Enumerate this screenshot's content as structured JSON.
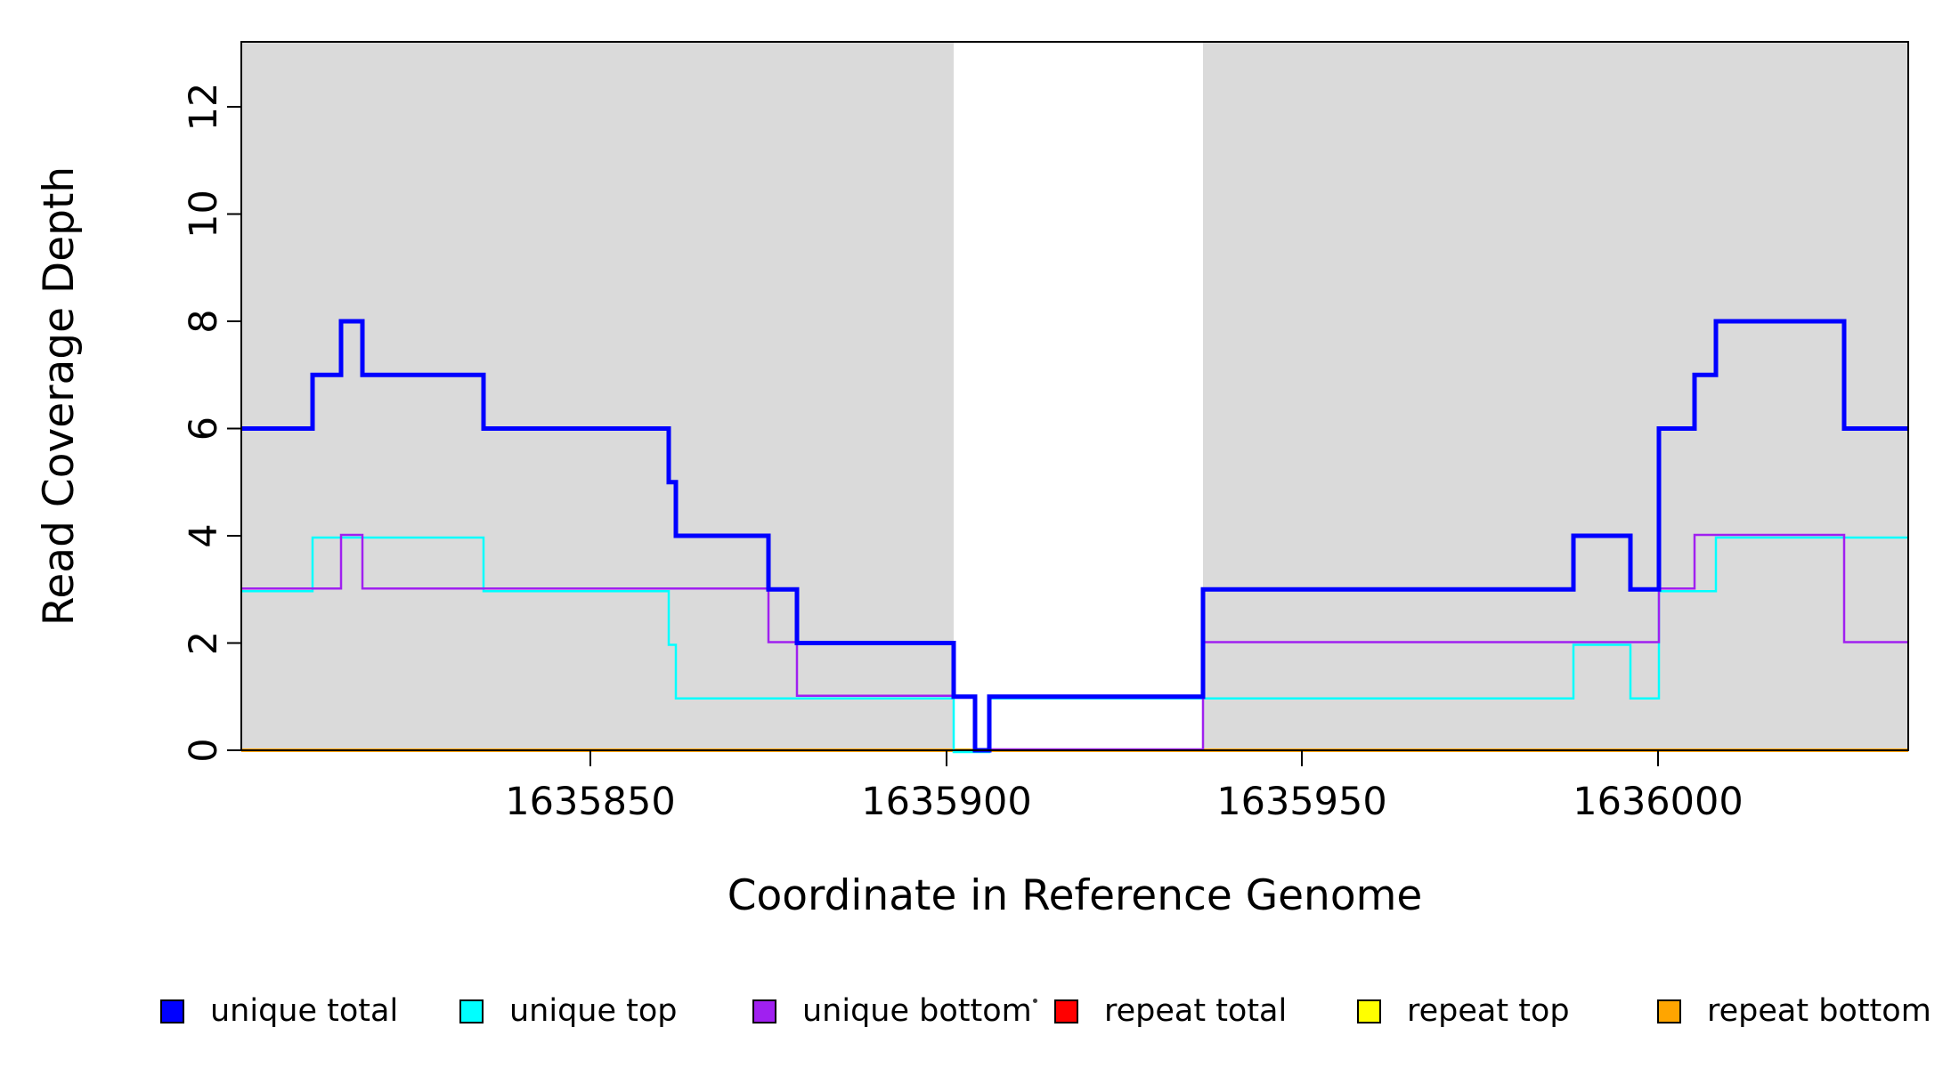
{
  "chart_data": {
    "type": "line",
    "subtype": "step-coverage-plot",
    "title": "",
    "xlabel": "Coordinate in Reference Genome",
    "ylabel": "Read Coverage Depth",
    "xlim": [
      1635801,
      1636035
    ],
    "ylim": [
      0,
      13.2
    ],
    "grid": false,
    "x_ticks": [
      1635850,
      1635900,
      1635950,
      1636000
    ],
    "x_tick_labels": [
      "1635850",
      "1635900",
      "1635950",
      "1636000"
    ],
    "y_ticks": [
      0,
      2,
      4,
      6,
      8,
      10,
      12
    ],
    "y_tick_labels": [
      "0",
      "2",
      "4",
      "6",
      "8",
      "10",
      "12"
    ],
    "plot_bg_color": "#ffffff",
    "band_color": "#DADADA",
    "background_bands": [
      {
        "from": 1635801,
        "to": 1635901
      },
      {
        "from": 1635936,
        "to": 1636035
      }
    ],
    "series": [
      {
        "name": "repeat total",
        "color": "#FF0000",
        "width": 3,
        "segments": [
          [
            1635801,
            1636035,
            0
          ]
        ]
      },
      {
        "name": "repeat top",
        "color": "#FFFF00",
        "width": 3,
        "segments": [
          [
            1635801,
            1636035,
            0
          ]
        ]
      },
      {
        "name": "repeat bottom",
        "color": "#FFA500",
        "width": 4,
        "segments": [
          [
            1635801,
            1636035,
            0
          ]
        ]
      },
      {
        "name": "unique top",
        "color": "#00FFFF",
        "width": 2.5,
        "segments": [
          [
            1635801,
            1635811,
            3
          ],
          [
            1635811,
            1635835,
            4
          ],
          [
            1635835,
            1635861,
            3
          ],
          [
            1635861,
            1635862,
            2
          ],
          [
            1635862,
            1635901,
            1
          ],
          [
            1635901,
            1635906,
            0
          ],
          [
            1635906,
            1635988,
            1
          ],
          [
            1635988,
            1635996,
            2
          ],
          [
            1635996,
            1636000,
            1
          ],
          [
            1636000,
            1636008,
            3
          ],
          [
            1636008,
            1636035,
            4
          ]
        ]
      },
      {
        "name": "unique bottom",
        "color": "#A020F0",
        "width": 2.5,
        "segments": [
          [
            1635801,
            1635815,
            3
          ],
          [
            1635815,
            1635818,
            4
          ],
          [
            1635818,
            1635875,
            3
          ],
          [
            1635875,
            1635879,
            2
          ],
          [
            1635879,
            1635904,
            1
          ],
          [
            1635904,
            1635936,
            0
          ],
          [
            1635936,
            1636000,
            2
          ],
          [
            1636000,
            1636005,
            3
          ],
          [
            1636005,
            1636026,
            4
          ],
          [
            1636026,
            1636035,
            2
          ]
        ]
      },
      {
        "name": "unique total",
        "color": "#0000FF",
        "width": 5,
        "segments": [
          [
            1635801,
            1635811,
            6
          ],
          [
            1635811,
            1635815,
            7
          ],
          [
            1635815,
            1635818,
            8
          ],
          [
            1635818,
            1635835,
            7
          ],
          [
            1635835,
            1635861,
            6
          ],
          [
            1635861,
            1635862,
            5
          ],
          [
            1635862,
            1635875,
            4
          ],
          [
            1635875,
            1635879,
            3
          ],
          [
            1635879,
            1635901,
            2
          ],
          [
            1635901,
            1635904,
            1
          ],
          [
            1635904,
            1635906,
            0
          ],
          [
            1635906,
            1635936,
            1
          ],
          [
            1635936,
            1635988,
            3
          ],
          [
            1635988,
            1635996,
            4
          ],
          [
            1635996,
            1636000,
            3
          ],
          [
            1636000,
            1636005,
            6
          ],
          [
            1636005,
            1636008,
            7
          ],
          [
            1636008,
            1636026,
            8
          ],
          [
            1636026,
            1636035,
            6
          ]
        ]
      }
    ],
    "legend": {
      "position": "bottom",
      "items": [
        {
          "label": "unique total",
          "color": "#0000FF"
        },
        {
          "label": "unique top",
          "color": "#00FFFF"
        },
        {
          "label": "unique bottom",
          "color": "#A020F0"
        },
        {
          "label": "repeat total",
          "color": "#FF0000"
        },
        {
          "label": "repeat top",
          "color": "#FFFF00"
        },
        {
          "label": "repeat bottom",
          "color": "#FFA500"
        }
      ]
    }
  }
}
